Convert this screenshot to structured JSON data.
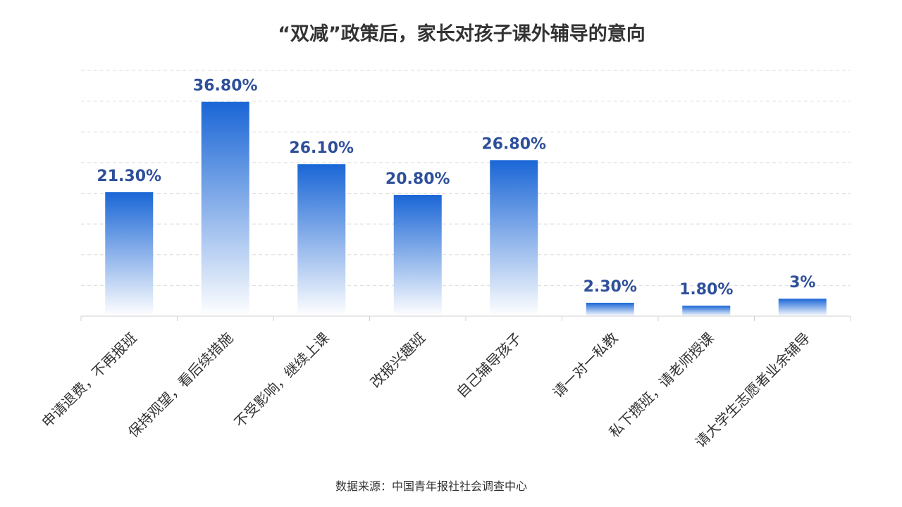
{
  "chart_data": {
    "type": "bar",
    "title": "“双减”政策后，家长对孩子课外辅导的意向",
    "xlabel": "",
    "ylabel": "",
    "ylim": [
      0,
      40
    ],
    "grid": true,
    "categories": [
      "申请退费，不再报班",
      "保持观望，看后续措施",
      "不受影响，继续上课",
      "改报兴趣班",
      "自己辅导孩子",
      "请一对一私教",
      "私下攒班，请老师授课",
      "请大学生志愿者业余辅导"
    ],
    "values": [
      21.3,
      36.8,
      26.1,
      20.8,
      26.8,
      2.3,
      1.8,
      3
    ],
    "value_labels": [
      "21.30%",
      "36.80%",
      "26.10%",
      "20.80%",
      "26.80%",
      "2.30%",
      "1.80%",
      "3%"
    ]
  },
  "source": "数据来源：中国青年报社社会调查中心",
  "colors": {
    "bar_top": "#1a66d6",
    "bar_bottom": "#ffffff",
    "value_label": "#2e4f9a",
    "grid": "#dcdcdc",
    "axis": "#d0d0d0"
  }
}
